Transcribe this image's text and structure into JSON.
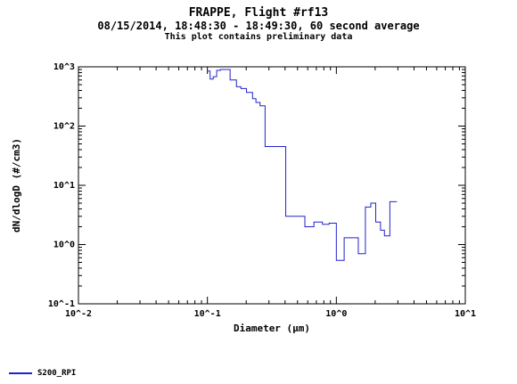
{
  "chart_data": {
    "type": "line",
    "title": "FRAPPE, Flight #rf13",
    "subtitle": "08/15/2014, 18:48:30 - 18:49:30, 60 second average",
    "note": "This plot contains preliminary data",
    "xlabel": "Diameter (µm)",
    "ylabel": "dN/dlogD (#/cm3)",
    "x_scale": "log",
    "y_scale": "log",
    "xlim": [
      0.01,
      10
    ],
    "ylim": [
      0.1,
      1000
    ],
    "x_ticks": [
      {
        "value": 0.01,
        "label": "10^-2"
      },
      {
        "value": 0.1,
        "label": "10^-1"
      },
      {
        "value": 1,
        "label": "10^0"
      },
      {
        "value": 10,
        "label": "10^1"
      }
    ],
    "y_ticks": [
      {
        "value": 0.1,
        "label": "10^-1"
      },
      {
        "value": 1,
        "label": "10^0"
      },
      {
        "value": 10,
        "label": "10^1"
      },
      {
        "value": 100,
        "label": "10^2"
      },
      {
        "value": 1000,
        "label": "10^3"
      }
    ],
    "grid": false,
    "legend_position": "bottom-left",
    "series": [
      {
        "name": "S200_RPI",
        "color": "#2222cc",
        "step": true,
        "bins": [
          [
            0.1,
            0.105,
            850
          ],
          [
            0.105,
            0.111,
            620
          ],
          [
            0.111,
            0.118,
            680
          ],
          [
            0.118,
            0.126,
            870
          ],
          [
            0.126,
            0.15,
            900
          ],
          [
            0.15,
            0.168,
            600
          ],
          [
            0.168,
            0.182,
            460
          ],
          [
            0.182,
            0.201,
            430
          ],
          [
            0.201,
            0.224,
            370
          ],
          [
            0.224,
            0.238,
            290
          ],
          [
            0.238,
            0.256,
            250
          ],
          [
            0.256,
            0.28,
            220
          ],
          [
            0.28,
            0.405,
            45
          ],
          [
            0.405,
            0.57,
            3.0
          ],
          [
            0.57,
            0.67,
            2.0
          ],
          [
            0.67,
            0.78,
            2.4
          ],
          [
            0.78,
            0.88,
            2.2
          ],
          [
            0.88,
            1.0,
            2.3
          ],
          [
            1.0,
            1.15,
            0.54
          ],
          [
            1.15,
            1.48,
            1.3
          ],
          [
            1.48,
            1.68,
            0.7
          ],
          [
            1.68,
            1.85,
            4.3
          ],
          [
            1.85,
            2.02,
            5.0
          ],
          [
            2.02,
            2.2,
            2.4
          ],
          [
            2.2,
            2.36,
            1.75
          ],
          [
            2.36,
            2.6,
            1.4
          ],
          [
            2.6,
            2.95,
            5.3
          ]
        ]
      }
    ]
  }
}
